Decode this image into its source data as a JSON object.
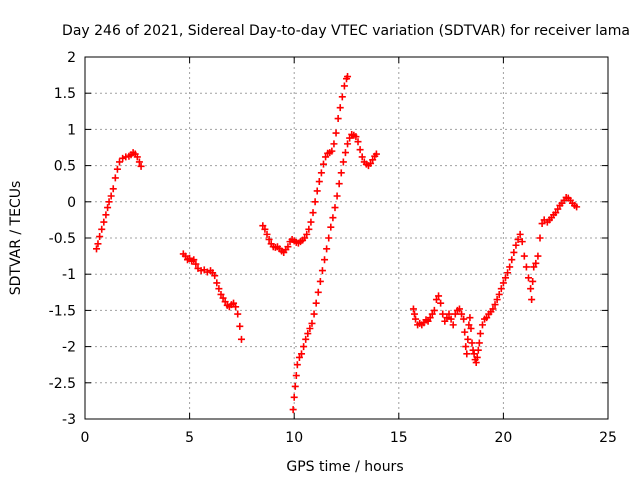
{
  "chart_data": {
    "type": "scatter",
    "title": "Day 246 of 2021, Sidereal Day-to-day VTEC variation (SDTVAR) for receiver lama",
    "xlabel": "GPS time / hours",
    "ylabel": "SDTVAR / TECUs",
    "xlim": [
      0,
      25
    ],
    "ylim": [
      -3,
      2
    ],
    "xticks": [
      0,
      5,
      10,
      15,
      20,
      25
    ],
    "yticks": [
      -3,
      -2.5,
      -2,
      -1.5,
      -1,
      -0.5,
      0,
      0.5,
      1,
      1.5,
      2
    ],
    "xtick_labels": [
      "0",
      "5",
      "10",
      "15",
      "20",
      "25"
    ],
    "ytick_labels": [
      "-3",
      "-2.5",
      "-2",
      "-1.5",
      "-1",
      "-0.5",
      "0",
      "0.5",
      "1",
      "1.5",
      "2"
    ],
    "grid": true,
    "marker": "+",
    "series": [
      {
        "color": "#ff0000",
        "points": [
          [
            0.55,
            -0.65
          ],
          [
            0.62,
            -0.58
          ],
          [
            0.7,
            -0.48
          ],
          [
            0.8,
            -0.38
          ],
          [
            0.9,
            -0.28
          ],
          [
            1.0,
            -0.18
          ],
          [
            1.08,
            -0.08
          ],
          [
            1.15,
            0.0
          ],
          [
            1.25,
            0.08
          ],
          [
            1.35,
            0.18
          ],
          [
            1.45,
            0.33
          ],
          [
            1.55,
            0.45
          ],
          [
            1.65,
            0.55
          ],
          [
            1.8,
            0.6
          ],
          [
            1.95,
            0.62
          ],
          [
            2.1,
            0.63
          ],
          [
            2.2,
            0.65
          ],
          [
            2.3,
            0.68
          ],
          [
            2.4,
            0.66
          ],
          [
            2.5,
            0.62
          ],
          [
            2.6,
            0.55
          ],
          [
            2.68,
            0.49
          ],
          [
            4.7,
            -0.72
          ],
          [
            4.8,
            -0.75
          ],
          [
            4.9,
            -0.8
          ],
          [
            5.0,
            -0.78
          ],
          [
            5.1,
            -0.82
          ],
          [
            5.2,
            -0.8
          ],
          [
            5.3,
            -0.86
          ],
          [
            5.4,
            -0.92
          ],
          [
            5.55,
            -0.95
          ],
          [
            5.7,
            -0.94
          ],
          [
            5.85,
            -0.97
          ],
          [
            6.0,
            -0.95
          ],
          [
            6.1,
            -0.98
          ],
          [
            6.2,
            -1.02
          ],
          [
            6.3,
            -1.12
          ],
          [
            6.4,
            -1.2
          ],
          [
            6.5,
            -1.28
          ],
          [
            6.6,
            -1.33
          ],
          [
            6.7,
            -1.38
          ],
          [
            6.8,
            -1.43
          ],
          [
            6.9,
            -1.45
          ],
          [
            7.0,
            -1.42
          ],
          [
            7.1,
            -1.4
          ],
          [
            7.2,
            -1.45
          ],
          [
            7.3,
            -1.55
          ],
          [
            7.4,
            -1.72
          ],
          [
            7.48,
            -1.9
          ],
          [
            8.5,
            -0.33
          ],
          [
            8.6,
            -0.38
          ],
          [
            8.7,
            -0.45
          ],
          [
            8.8,
            -0.52
          ],
          [
            8.9,
            -0.58
          ],
          [
            9.0,
            -0.62
          ],
          [
            9.1,
            -0.63
          ],
          [
            9.2,
            -0.62
          ],
          [
            9.3,
            -0.65
          ],
          [
            9.4,
            -0.68
          ],
          [
            9.5,
            -0.7
          ],
          [
            9.6,
            -0.66
          ],
          [
            9.7,
            -0.62
          ],
          [
            9.8,
            -0.55
          ],
          [
            9.9,
            -0.52
          ],
          [
            10.0,
            -0.54
          ],
          [
            10.1,
            -0.56
          ],
          [
            10.2,
            -0.57
          ],
          [
            10.3,
            -0.55
          ],
          [
            10.4,
            -0.53
          ],
          [
            10.5,
            -0.5
          ],
          [
            10.6,
            -0.45
          ],
          [
            10.7,
            -0.38
          ],
          [
            10.8,
            -0.28
          ],
          [
            10.9,
            -0.15
          ],
          [
            11.0,
            0.0
          ],
          [
            11.1,
            0.15
          ],
          [
            11.2,
            0.28
          ],
          [
            11.3,
            0.4
          ],
          [
            11.4,
            0.52
          ],
          [
            11.5,
            0.62
          ],
          [
            11.6,
            0.67
          ],
          [
            11.7,
            0.68
          ],
          [
            11.8,
            0.7
          ],
          [
            11.9,
            0.8
          ],
          [
            12.0,
            0.95
          ],
          [
            12.1,
            1.15
          ],
          [
            12.2,
            1.3
          ],
          [
            12.3,
            1.45
          ],
          [
            12.4,
            1.6
          ],
          [
            12.5,
            1.7
          ],
          [
            12.55,
            1.73
          ],
          [
            9.95,
            -2.87
          ],
          [
            10.0,
            -2.7
          ],
          [
            10.05,
            -2.55
          ],
          [
            10.1,
            -2.4
          ],
          [
            10.15,
            -2.25
          ],
          [
            10.25,
            -2.15
          ],
          [
            10.35,
            -2.1
          ],
          [
            10.45,
            -2.0
          ],
          [
            10.55,
            -1.9
          ],
          [
            10.65,
            -1.82
          ],
          [
            10.75,
            -1.75
          ],
          [
            10.85,
            -1.68
          ],
          [
            10.95,
            -1.55
          ],
          [
            11.05,
            -1.4
          ],
          [
            11.15,
            -1.25
          ],
          [
            11.25,
            -1.1
          ],
          [
            11.35,
            -0.95
          ],
          [
            11.45,
            -0.8
          ],
          [
            11.55,
            -0.65
          ],
          [
            11.65,
            -0.5
          ],
          [
            11.75,
            -0.35
          ],
          [
            11.85,
            -0.22
          ],
          [
            11.95,
            -0.08
          ],
          [
            12.05,
            0.08
          ],
          [
            12.15,
            0.25
          ],
          [
            12.25,
            0.4
          ],
          [
            12.35,
            0.55
          ],
          [
            12.45,
            0.68
          ],
          [
            12.55,
            0.8
          ],
          [
            12.65,
            0.88
          ],
          [
            12.75,
            0.93
          ],
          [
            12.85,
            0.92
          ],
          [
            12.95,
            0.9
          ],
          [
            13.05,
            0.83
          ],
          [
            13.15,
            0.72
          ],
          [
            13.25,
            0.62
          ],
          [
            13.35,
            0.55
          ],
          [
            13.45,
            0.52
          ],
          [
            13.55,
            0.5
          ],
          [
            13.65,
            0.53
          ],
          [
            13.75,
            0.58
          ],
          [
            13.85,
            0.63
          ],
          [
            13.93,
            0.66
          ],
          [
            15.7,
            -1.48
          ],
          [
            15.75,
            -1.55
          ],
          [
            15.8,
            -1.62
          ],
          [
            15.9,
            -1.7
          ],
          [
            16.0,
            -1.68
          ],
          [
            16.1,
            -1.7
          ],
          [
            16.2,
            -1.67
          ],
          [
            16.3,
            -1.63
          ],
          [
            16.4,
            -1.65
          ],
          [
            16.5,
            -1.6
          ],
          [
            16.6,
            -1.55
          ],
          [
            16.7,
            -1.5
          ],
          [
            16.8,
            -1.35
          ],
          [
            16.9,
            -1.3
          ],
          [
            17.0,
            -1.4
          ],
          [
            17.1,
            -1.55
          ],
          [
            17.2,
            -1.65
          ],
          [
            17.3,
            -1.6
          ],
          [
            17.4,
            -1.55
          ],
          [
            17.5,
            -1.62
          ],
          [
            17.6,
            -1.7
          ],
          [
            17.7,
            -1.55
          ],
          [
            17.8,
            -1.5
          ],
          [
            17.9,
            -1.48
          ],
          [
            18.0,
            -1.55
          ],
          [
            18.1,
            -1.62
          ],
          [
            18.15,
            -1.8
          ],
          [
            18.2,
            -2.0
          ],
          [
            18.25,
            -2.1
          ],
          [
            18.3,
            -1.9
          ],
          [
            18.35,
            -1.7
          ],
          [
            18.4,
            -1.6
          ],
          [
            18.45,
            -1.75
          ],
          [
            18.5,
            -1.95
          ],
          [
            18.55,
            -2.05
          ],
          [
            18.6,
            -2.1
          ],
          [
            18.65,
            -2.18
          ],
          [
            18.7,
            -2.22
          ],
          [
            18.75,
            -2.15
          ],
          [
            18.8,
            -2.05
          ],
          [
            18.85,
            -1.95
          ],
          [
            18.9,
            -1.82
          ],
          [
            19.0,
            -1.7
          ],
          [
            19.1,
            -1.62
          ],
          [
            19.2,
            -1.6
          ],
          [
            19.3,
            -1.55
          ],
          [
            19.4,
            -1.52
          ],
          [
            19.5,
            -1.48
          ],
          [
            19.6,
            -1.42
          ],
          [
            19.7,
            -1.35
          ],
          [
            19.8,
            -1.28
          ],
          [
            19.9,
            -1.2
          ],
          [
            20.0,
            -1.12
          ],
          [
            20.1,
            -1.05
          ],
          [
            20.2,
            -0.98
          ],
          [
            20.3,
            -0.9
          ],
          [
            20.4,
            -0.8
          ],
          [
            20.5,
            -0.7
          ],
          [
            20.6,
            -0.6
          ],
          [
            20.7,
            -0.52
          ],
          [
            20.8,
            -0.45
          ],
          [
            20.9,
            -0.55
          ],
          [
            21.0,
            -0.75
          ],
          [
            21.1,
            -0.9
          ],
          [
            21.2,
            -1.05
          ],
          [
            21.3,
            -1.2
          ],
          [
            21.35,
            -1.35
          ],
          [
            21.4,
            -1.1
          ],
          [
            21.45,
            -0.9
          ],
          [
            21.55,
            -0.85
          ],
          [
            21.65,
            -0.75
          ],
          [
            21.75,
            -0.5
          ],
          [
            21.85,
            -0.3
          ],
          [
            21.95,
            -0.25
          ],
          [
            22.1,
            -0.28
          ],
          [
            22.2,
            -0.25
          ],
          [
            22.3,
            -0.22
          ],
          [
            22.4,
            -0.18
          ],
          [
            22.5,
            -0.15
          ],
          [
            22.6,
            -0.1
          ],
          [
            22.7,
            -0.05
          ],
          [
            22.8,
            -0.02
          ],
          [
            22.9,
            0.02
          ],
          [
            23.0,
            0.06
          ],
          [
            23.1,
            0.05
          ],
          [
            23.2,
            0.02
          ],
          [
            23.3,
            -0.02
          ],
          [
            23.4,
            -0.05
          ],
          [
            23.5,
            -0.07
          ]
        ]
      }
    ]
  }
}
